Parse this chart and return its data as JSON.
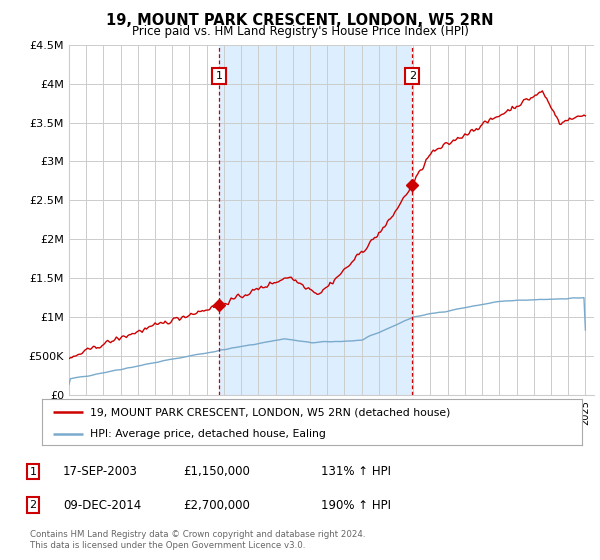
{
  "title": "19, MOUNT PARK CRESCENT, LONDON, W5 2RN",
  "subtitle": "Price paid vs. HM Land Registry's House Price Index (HPI)",
  "legend_line1": "19, MOUNT PARK CRESCENT, LONDON, W5 2RN (detached house)",
  "legend_line2": "HPI: Average price, detached house, Ealing",
  "sale1_date": "17-SEP-2003",
  "sale1_price": 1150000,
  "sale1_pct": "131%",
  "sale2_date": "09-DEC-2014",
  "sale2_price": 2700000,
  "sale2_pct": "190%",
  "footer1": "Contains HM Land Registry data © Crown copyright and database right 2024.",
  "footer2": "This data is licensed under the Open Government Licence v3.0.",
  "red_color": "#cc0000",
  "blue_color": "#7aaacc",
  "vline_color": "#cc0000",
  "background_color": "#ffffff",
  "grid_color": "#cccccc",
  "shade_color": "#ddeeff",
  "ylim": [
    0,
    4500000
  ],
  "xlim_start": 1995.0,
  "xlim_end": 2025.5,
  "sale1_year": 2003.72,
  "sale2_year": 2014.94
}
